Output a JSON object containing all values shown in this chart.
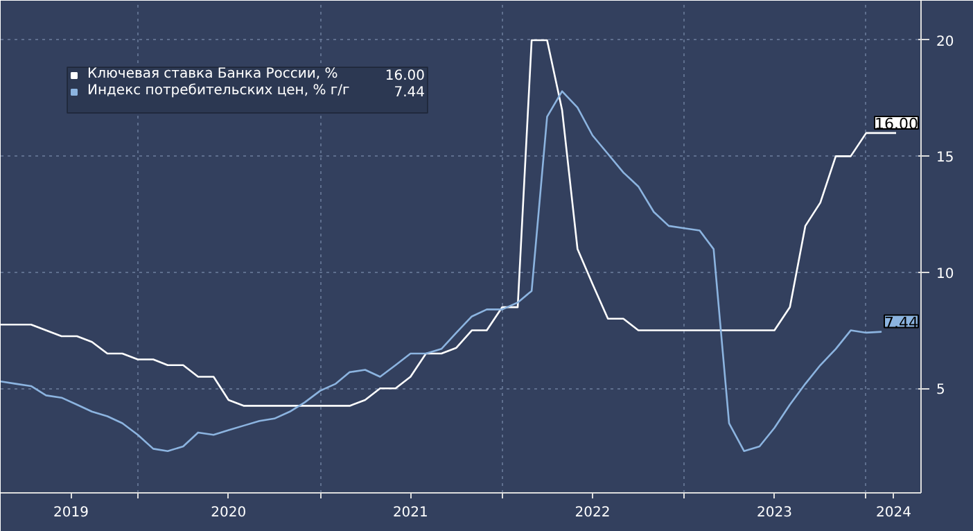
{
  "chart_data": {
    "type": "line",
    "x": [
      "2019-04",
      "2019-05",
      "2019-06",
      "2019-07",
      "2019-08",
      "2019-09",
      "2019-10",
      "2019-11",
      "2019-12",
      "2020-01",
      "2020-02",
      "2020-03",
      "2020-04",
      "2020-05",
      "2020-06",
      "2020-07",
      "2020-08",
      "2020-09",
      "2020-10",
      "2020-11",
      "2020-12",
      "2021-01",
      "2021-02",
      "2021-03",
      "2021-04",
      "2021-05",
      "2021-06",
      "2021-07",
      "2021-08",
      "2021-09",
      "2021-10",
      "2021-11",
      "2021-12",
      "2022-01",
      "2022-02",
      "2022-03",
      "2022-04",
      "2022-05",
      "2022-06",
      "2022-07",
      "2022-08",
      "2022-09",
      "2022-10",
      "2022-11",
      "2022-12",
      "2023-01",
      "2023-02",
      "2023-03",
      "2023-04",
      "2023-05",
      "2023-06",
      "2023-07",
      "2023-08",
      "2023-09",
      "2023-10",
      "2023-11",
      "2023-12",
      "2024-01",
      "2024-02",
      "2024-03"
    ],
    "series": [
      {
        "name": "Ключевая ставка Банка России, %",
        "color": "#ffffff",
        "values": [
          7.75,
          7.75,
          7.75,
          7.5,
          7.25,
          7.25,
          7.0,
          6.5,
          6.5,
          6.25,
          6.25,
          6.0,
          6.0,
          5.5,
          5.5,
          4.5,
          4.25,
          4.25,
          4.25,
          4.25,
          4.25,
          4.25,
          4.25,
          4.25,
          4.5,
          5.0,
          5.0,
          5.5,
          6.5,
          6.5,
          6.75,
          7.5,
          7.5,
          8.5,
          8.5,
          20,
          20,
          17,
          11,
          9.5,
          8,
          8,
          7.5,
          7.5,
          7.5,
          7.5,
          7.5,
          7.5,
          7.5,
          7.5,
          7.5,
          7.5,
          8.5,
          12,
          13,
          15,
          15,
          16,
          16,
          16
        ],
        "value_labels": [
          null,
          null,
          null,
          null,
          null,
          null,
          null,
          null,
          null,
          null,
          null,
          null,
          null,
          null,
          null,
          null,
          null,
          null,
          null,
          null,
          null,
          null,
          null,
          null,
          null,
          null,
          null,
          null,
          null,
          null,
          null,
          null,
          null,
          null,
          null,
          null,
          null,
          null,
          null,
          null,
          null,
          null,
          null,
          null,
          null,
          null,
          null,
          null,
          null,
          null,
          null,
          null,
          null,
          null,
          null,
          null,
          null,
          null,
          null,
          "16.00"
        ]
      },
      {
        "name": "Индекс потребительских цен, % г/г",
        "color": "#8cb4e0",
        "values": [
          5.3,
          5.2,
          5.1,
          4.7,
          4.6,
          4.3,
          4.0,
          3.8,
          3.5,
          3.0,
          2.4,
          2.3,
          2.5,
          3.1,
          3.0,
          3.2,
          3.4,
          3.6,
          3.7,
          4.0,
          4.4,
          4.9,
          5.2,
          5.7,
          5.8,
          5.5,
          6.0,
          6.5,
          6.5,
          6.7,
          7.4,
          8.1,
          8.4,
          8.4,
          8.7,
          9.2,
          16.7,
          17.8,
          17.1,
          15.9,
          15.1,
          14.3,
          13.7,
          12.6,
          12.0,
          11.9,
          11.8,
          11.0,
          3.5,
          2.3,
          2.5,
          3.3,
          4.3,
          5.2,
          6.0,
          6.7,
          7.5,
          7.4,
          7.44,
          null
        ],
        "value_labels": [
          null,
          null,
          null,
          null,
          null,
          null,
          null,
          null,
          null,
          null,
          null,
          null,
          null,
          null,
          null,
          null,
          null,
          null,
          null,
          null,
          null,
          null,
          null,
          null,
          null,
          null,
          null,
          null,
          null,
          null,
          null,
          null,
          null,
          null,
          null,
          null,
          null,
          null,
          null,
          null,
          null,
          null,
          null,
          null,
          null,
          null,
          null,
          null,
          null,
          null,
          null,
          null,
          null,
          null,
          null,
          null,
          null,
          null,
          "7.44",
          null
        ]
      }
    ],
    "xlim": [
      "2019-04-01",
      "2024-04-20"
    ],
    "xticks": [
      {
        "value": "2020-01-01",
        "label": null
      },
      {
        "value": "2021-01-01",
        "label": null
      },
      {
        "value": "2022-01-01",
        "label": null
      },
      {
        "value": "2023-01-01",
        "label": null
      },
      {
        "value": "2024-01-01",
        "label": null
      },
      {
        "value": "2019-08-20",
        "label": "2019"
      },
      {
        "value": "2020-07-01",
        "label": "2020"
      },
      {
        "value": "2021-07-01",
        "label": "2021"
      },
      {
        "value": "2022-07-01",
        "label": "2022"
      },
      {
        "value": "2023-07-01",
        "label": "2023"
      },
      {
        "value": "2024-02-25",
        "label": "2024"
      }
    ],
    "ylim": [
      0.5,
      21.7
    ],
    "yticks": [
      5,
      10,
      15,
      20
    ],
    "grid": true,
    "legend": "top left",
    "line_style": "solid"
  }
}
